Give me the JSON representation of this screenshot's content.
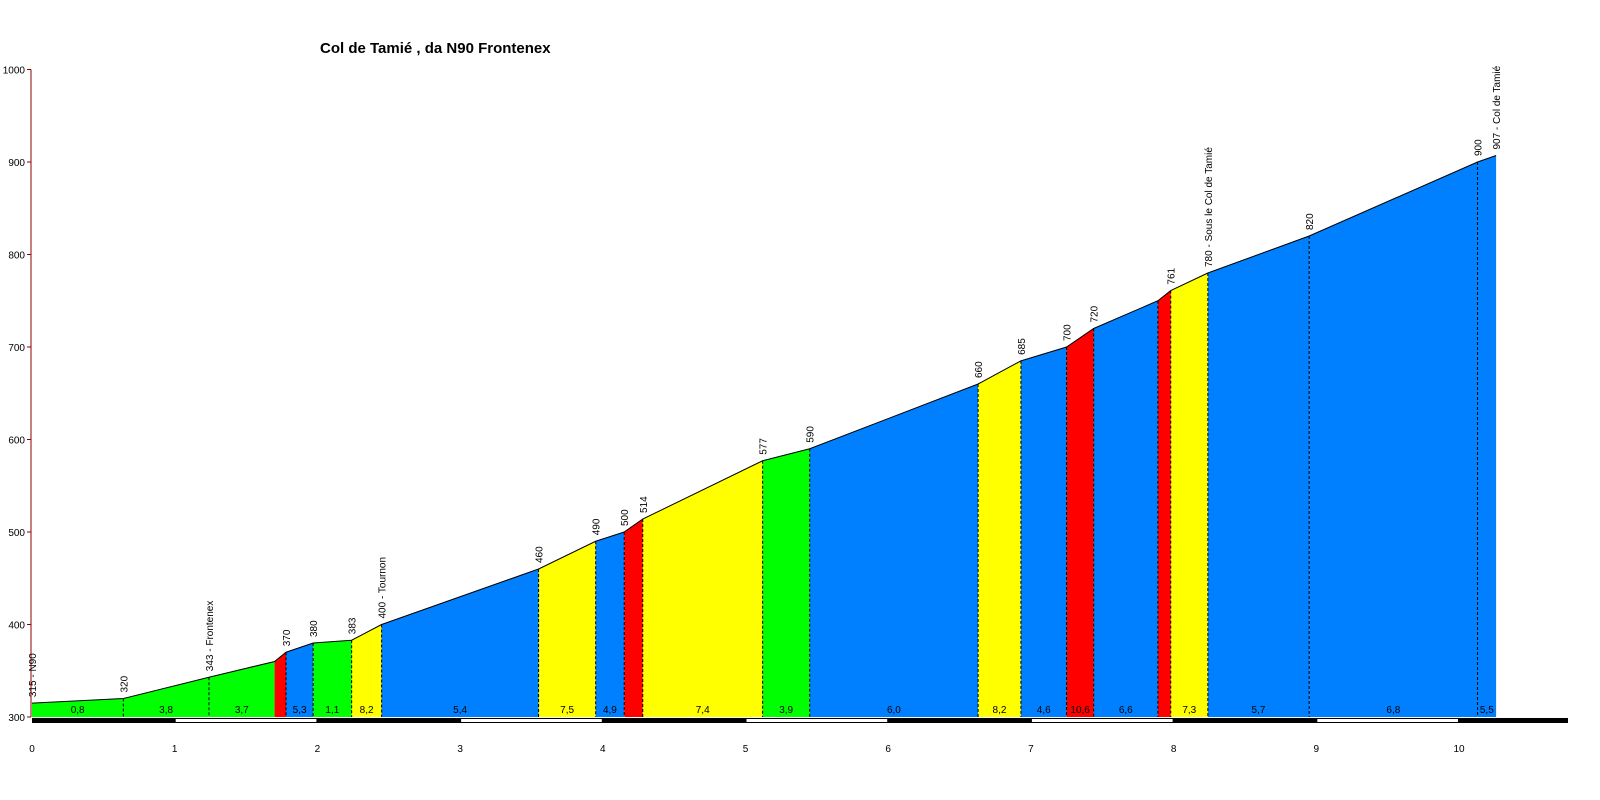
{
  "chart_data": {
    "type": "area",
    "title": "Col de Tamié , da N90 Frontenex",
    "xlabel": "",
    "ylabel": "",
    "xlim": [
      0,
      10.95
    ],
    "ylim": [
      300,
      1000
    ],
    "x_ticks": [
      "0",
      "1",
      "2",
      "3",
      "4",
      "5",
      "6",
      "7",
      "8",
      "9",
      "10"
    ],
    "y_ticks": [
      "300",
      "400",
      "500",
      "600",
      "700",
      "800",
      "900",
      "1000"
    ],
    "grid": false,
    "legend": "none",
    "colors": {
      "green": "#00ff00",
      "blue": "#0080ff",
      "yellow": "#ffff00",
      "red": "#ff0000",
      "axis": "#8b0000"
    },
    "segments": [
      {
        "x0": 0.0,
        "x1": 0.64,
        "e0": 315,
        "e1": 320,
        "grade": "0,8",
        "color": "green"
      },
      {
        "x0": 0.64,
        "x1": 1.24,
        "e0": 320,
        "e1": 343,
        "grade": "3,8",
        "color": "green"
      },
      {
        "x0": 1.24,
        "x1": 1.7,
        "e0": 343,
        "e1": 360,
        "grade": "3,7",
        "color": "green"
      },
      {
        "x0": 1.7,
        "x1": 1.78,
        "e0": 360,
        "e1": 370,
        "grade": "",
        "color": "red"
      },
      {
        "x0": 1.78,
        "x1": 1.97,
        "e0": 370,
        "e1": 380,
        "grade": "5,3",
        "color": "blue"
      },
      {
        "x0": 1.97,
        "x1": 2.24,
        "e0": 380,
        "e1": 383,
        "grade": "1,1",
        "color": "green"
      },
      {
        "x0": 2.24,
        "x1": 2.45,
        "e0": 383,
        "e1": 400,
        "grade": "8,2",
        "color": "yellow"
      },
      {
        "x0": 2.45,
        "x1": 3.55,
        "e0": 400,
        "e1": 460,
        "grade": "5,4",
        "color": "blue"
      },
      {
        "x0": 3.55,
        "x1": 3.95,
        "e0": 460,
        "e1": 490,
        "grade": "7,5",
        "color": "yellow"
      },
      {
        "x0": 3.95,
        "x1": 4.15,
        "e0": 490,
        "e1": 500,
        "grade": "4,9",
        "color": "blue"
      },
      {
        "x0": 4.15,
        "x1": 4.28,
        "e0": 500,
        "e1": 514,
        "grade": "",
        "color": "red"
      },
      {
        "x0": 4.28,
        "x1": 5.12,
        "e0": 514,
        "e1": 577,
        "grade": "7,4",
        "color": "yellow"
      },
      {
        "x0": 5.12,
        "x1": 5.45,
        "e0": 577,
        "e1": 590,
        "grade": "3,9",
        "color": "green"
      },
      {
        "x0": 5.45,
        "x1": 6.63,
        "e0": 590,
        "e1": 660,
        "grade": "6,0",
        "color": "blue"
      },
      {
        "x0": 6.63,
        "x1": 6.93,
        "e0": 660,
        "e1": 685,
        "grade": "8,2",
        "color": "yellow"
      },
      {
        "x0": 6.93,
        "x1": 7.25,
        "e0": 685,
        "e1": 700,
        "grade": "4,6",
        "color": "blue"
      },
      {
        "x0": 7.25,
        "x1": 7.44,
        "e0": 700,
        "e1": 720,
        "grade": "10,6",
        "color": "red"
      },
      {
        "x0": 7.44,
        "x1": 7.89,
        "e0": 720,
        "e1": 750,
        "grade": "6,6",
        "color": "blue"
      },
      {
        "x0": 7.89,
        "x1": 7.98,
        "e0": 750,
        "e1": 761,
        "grade": "",
        "color": "red"
      },
      {
        "x0": 7.98,
        "x1": 8.24,
        "e0": 761,
        "e1": 780,
        "grade": "7,3",
        "color": "yellow"
      },
      {
        "x0": 8.24,
        "x1": 8.95,
        "e0": 780,
        "e1": 820,
        "grade": "5,7",
        "color": "blue"
      },
      {
        "x0": 8.95,
        "x1": 10.13,
        "e0": 820,
        "e1": 900,
        "grade": "6,8",
        "color": "blue"
      },
      {
        "x0": 10.13,
        "x1": 10.26,
        "e0": 900,
        "e1": 907,
        "grade": "5,5",
        "color": "blue"
      }
    ],
    "dashed_markers": [
      0.64,
      1.24,
      1.78,
      1.97,
      2.24,
      2.45,
      3.55,
      3.95,
      4.15,
      4.28,
      5.12,
      5.45,
      6.63,
      6.93,
      7.25,
      7.44,
      7.89,
      7.98,
      8.24,
      8.95,
      10.13
    ],
    "elevation_labels": [
      {
        "x": 0.0,
        "e": 315,
        "text": "315 - N90"
      },
      {
        "x": 0.64,
        "e": 320,
        "text": "320"
      },
      {
        "x": 1.24,
        "e": 343,
        "text": "343 - Frontenex"
      },
      {
        "x": 1.78,
        "e": 370,
        "text": "370"
      },
      {
        "x": 1.97,
        "e": 380,
        "text": "380"
      },
      {
        "x": 2.24,
        "e": 383,
        "text": "383"
      },
      {
        "x": 2.45,
        "e": 400,
        "text": "400 - Tournon"
      },
      {
        "x": 3.55,
        "e": 460,
        "text": "460"
      },
      {
        "x": 3.95,
        "e": 490,
        "text": "490"
      },
      {
        "x": 4.15,
        "e": 500,
        "text": "500"
      },
      {
        "x": 4.28,
        "e": 514,
        "text": "514"
      },
      {
        "x": 5.12,
        "e": 577,
        "text": "577"
      },
      {
        "x": 5.45,
        "e": 590,
        "text": "590"
      },
      {
        "x": 6.63,
        "e": 660,
        "text": "660"
      },
      {
        "x": 6.93,
        "e": 685,
        "text": "685"
      },
      {
        "x": 7.25,
        "e": 700,
        "text": "700"
      },
      {
        "x": 7.44,
        "e": 720,
        "text": "720"
      },
      {
        "x": 7.98,
        "e": 761,
        "text": "761"
      },
      {
        "x": 8.24,
        "e": 780,
        "text": "780 - Sous le Col de Tamié"
      },
      {
        "x": 8.95,
        "e": 820,
        "text": "820"
      },
      {
        "x": 10.13,
        "e": 900,
        "text": "900"
      },
      {
        "x": 10.26,
        "e": 907,
        "text": "907 - Col de Tamié"
      }
    ]
  }
}
